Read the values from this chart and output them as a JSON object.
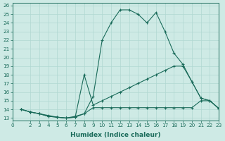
{
  "xlabel": "Humidex (Indice chaleur)",
  "bg_color": "#ceeae5",
  "grid_color": "#b0d8d2",
  "line_color": "#1a6b5a",
  "xlim": [
    0,
    23
  ],
  "ylim": [
    13,
    26
  ],
  "xticks": [
    0,
    2,
    3,
    4,
    5,
    6,
    7,
    8,
    9,
    10,
    11,
    12,
    13,
    14,
    15,
    16,
    17,
    18,
    19,
    20,
    21,
    22,
    23
  ],
  "yticks": [
    13,
    14,
    15,
    16,
    17,
    18,
    19,
    20,
    21,
    22,
    23,
    24,
    25,
    26
  ],
  "series": [
    {
      "x": [
        1,
        2,
        3,
        4,
        5,
        6,
        7,
        8,
        9,
        10,
        11,
        12,
        13,
        14,
        15,
        16,
        17,
        18,
        19,
        20,
        21,
        22,
        23
      ],
      "y": [
        14,
        13.7,
        13.5,
        13.2,
        13.1,
        13.0,
        13.1,
        13.5,
        15.5,
        22.0,
        24.0,
        25.5,
        25.5,
        25.0,
        24.0,
        25.2,
        23.0,
        20.5,
        19.2,
        17.2,
        15.3,
        15.0,
        14.1
      ]
    },
    {
      "x": [
        1,
        2,
        3,
        4,
        5,
        6,
        7,
        8,
        9,
        10,
        11,
        12,
        13,
        14,
        15,
        16,
        17,
        18,
        19,
        20,
        21,
        22,
        23
      ],
      "y": [
        14,
        13.7,
        13.5,
        13.2,
        13.1,
        13.0,
        13.1,
        18.0,
        14.5,
        15.0,
        15.5,
        16.0,
        16.5,
        17.0,
        17.5,
        18.0,
        18.5,
        19.0,
        19.0,
        17.2,
        15.3,
        15.0,
        14.1
      ]
    },
    {
      "x": [
        1,
        2,
        3,
        4,
        5,
        6,
        7,
        8,
        9,
        10,
        11,
        12,
        13,
        14,
        15,
        16,
        17,
        18,
        19,
        20,
        21,
        22,
        23
      ],
      "y": [
        14,
        13.7,
        13.5,
        13.3,
        13.1,
        13.0,
        13.2,
        13.5,
        14.2,
        14.2,
        14.2,
        14.2,
        14.2,
        14.2,
        14.2,
        14.2,
        14.2,
        14.2,
        14.2,
        14.2,
        15.0,
        15.0,
        14.1
      ]
    }
  ]
}
